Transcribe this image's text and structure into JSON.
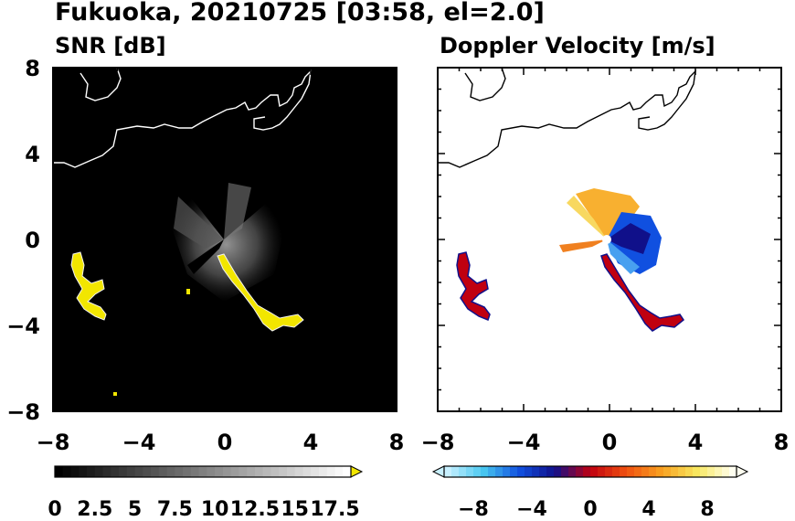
{
  "title": "Fukuoka, 20210725 [03:58, el=2.0]",
  "chart_data": [
    {
      "type": "heatmap",
      "title": "SNR [dB]",
      "xlim": [
        -8,
        8
      ],
      "ylim": [
        -8,
        8
      ],
      "xticks": [
        "−8",
        "−4",
        "0",
        "4",
        "8"
      ],
      "yticks": [
        "8",
        "4",
        "0",
        "−4",
        "−8"
      ],
      "xtick_values": [
        -8,
        -4,
        0,
        4,
        8
      ],
      "ytick_values": [
        8,
        4,
        0,
        -4,
        -8
      ],
      "background_color": "#000000",
      "colorbar": {
        "range": [
          0,
          18.5
        ],
        "tick_labels": [
          "0",
          "2.5",
          "5",
          "7.5",
          "10",
          "12.5",
          "15",
          "17.5"
        ],
        "tick_values": [
          0,
          2.5,
          5,
          7.5,
          10,
          12.5,
          15,
          17.5
        ],
        "colors": [
          "#000000",
          "#ffffff"
        ],
        "extend": "max",
        "extend_color": "#f2e600"
      },
      "features": [
        {
          "name": "radar-echo-near-radar",
          "center": [
            0.2,
            0.6
          ],
          "color": "#7a7a7a"
        },
        {
          "name": "strong-echo-line",
          "from": [
            -0.3,
            -0.6
          ],
          "to": [
            3.5,
            -4.0
          ],
          "color": "#f2e600"
        },
        {
          "name": "strong-echo-west",
          "from": [
            -7.1,
            -0.6
          ],
          "to": [
            -5.6,
            -3.7
          ],
          "color": "#f2e600"
        }
      ]
    },
    {
      "type": "heatmap",
      "title": "Doppler Velocity [m/s]",
      "xlim": [
        -8,
        8
      ],
      "ylim": [
        -8,
        8
      ],
      "xticks": [
        "−8",
        "−4",
        "0",
        "4",
        "8"
      ],
      "yticks": [
        "8",
        "4",
        "0",
        "−4",
        "−8"
      ],
      "xtick_values": [
        -8,
        -4,
        0,
        4,
        8
      ],
      "ytick_values": [
        8,
        4,
        0,
        -4,
        -8
      ],
      "background_color": "#ffffff",
      "colorbar": {
        "range": [
          -10,
          10
        ],
        "tick_labels": [
          "−8",
          "−4",
          "0",
          "4",
          "8"
        ],
        "tick_values": [
          -8,
          -4,
          0,
          4,
          8
        ],
        "colors": [
          "#c8f0ff",
          "#48c8f0",
          "#1050e0",
          "#10108a",
          "#c00010",
          "#f05010",
          "#f8a020",
          "#f8e860",
          "#fffff0"
        ],
        "extend": "both"
      },
      "features": [
        {
          "name": "approaching-velocities",
          "sector": "north-west",
          "color": "#f8a020"
        },
        {
          "name": "receding-velocities",
          "sector": "south-east",
          "color": "#1050e0"
        },
        {
          "name": "echo-line-mixed",
          "from": [
            -0.3,
            -0.6
          ],
          "to": [
            3.5,
            -4.0
          ],
          "color": "#c00010"
        },
        {
          "name": "echo-west-mixed",
          "from": [
            -7.1,
            -0.6
          ],
          "to": [
            -5.6,
            -3.7
          ],
          "color": "#c00010"
        }
      ]
    }
  ]
}
